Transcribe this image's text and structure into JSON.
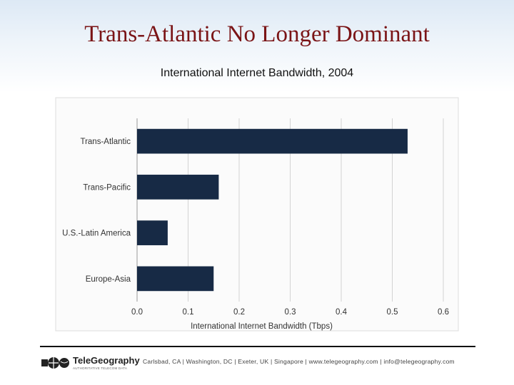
{
  "slide": {
    "title": "Trans-Atlantic No Longer Dominant",
    "subtitle": "International Internet Bandwidth, 2004"
  },
  "chart_data": {
    "type": "bar",
    "orientation": "horizontal",
    "categories": [
      "Trans-Atlantic",
      "Trans-Pacific",
      "U.S.-Latin America",
      "Europe-Asia"
    ],
    "values": [
      0.53,
      0.16,
      0.06,
      0.15
    ],
    "xlabel": "International Internet Bandwidth (Tbps)",
    "xlim": [
      0,
      0.6
    ],
    "xticks": [
      "0.0",
      "0.1",
      "0.2",
      "0.3",
      "0.4",
      "0.5",
      "0.6"
    ],
    "grid": true,
    "bar_color": "#172a45"
  },
  "footer": {
    "logo_name": "TeleGeography",
    "logo_tagline": "AUTHORITATIVE TELECOM DATA",
    "contact": "Carlsbad, CA | Washington, DC | Exeter, UK | Singapore | www.telegeography.com | info@telegeography.com"
  }
}
